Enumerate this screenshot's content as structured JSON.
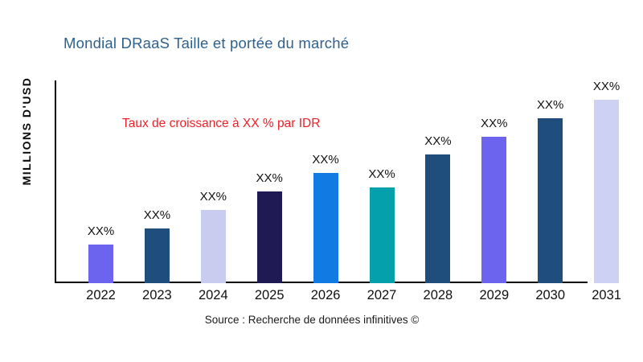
{
  "chart_data": {
    "type": "bar",
    "title": "Mondial DRaaS Taille et portée du marché",
    "title_color": "#2F618F",
    "ylabel": "MILLIONS D'USD",
    "xlabel": "",
    "categories": [
      "2022",
      "2023",
      "2024",
      "2025",
      "2026",
      "2027",
      "2028",
      "2029",
      "2030",
      "2031"
    ],
    "values": [
      21,
      30,
      40,
      50,
      60,
      52,
      70,
      80,
      90,
      100
    ],
    "values_note": "y-axis has no numeric ticks; values are bar heights as % of tallest bar (2031)",
    "bar_labels": [
      "XX%",
      "XX%",
      "XX%",
      "XX%",
      "XX%",
      "XX%",
      "XX%",
      "XX%",
      "XX%",
      "XX%"
    ],
    "bar_colors": [
      "#6C63EF",
      "#1F4E7D",
      "#C9CCEF",
      "#1F1A54",
      "#117BE3",
      "#04A1AD",
      "#1F4E7D",
      "#6C63EF",
      "#1F4E7D",
      "#CDD2F4"
    ],
    "annotation": {
      "text": "Taux de croissance à XX % par IDR",
      "color": "#EF2028"
    },
    "source": "Source : Recherche de données infinitives ©",
    "legend": false,
    "grid": false,
    "axis_color": "#000000",
    "background": "#FFFFFF"
  }
}
